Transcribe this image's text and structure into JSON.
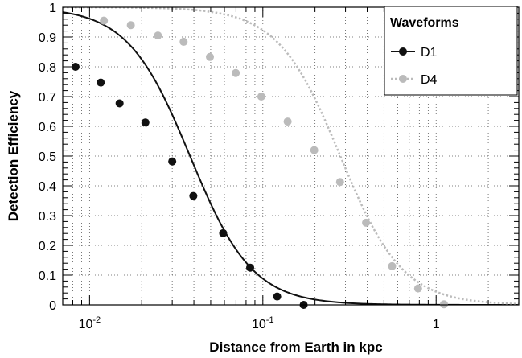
{
  "chart_data": {
    "type": "scatter",
    "xlabel": "Distance from Earth in kpc",
    "ylabel": "Detection Efficiency",
    "xscale": "log",
    "xlim": [
      0.007,
      3.0
    ],
    "ylim": [
      0,
      1
    ],
    "grid": true,
    "legend": {
      "title": "Waveforms",
      "position": "top-right"
    },
    "x_tick_labels": [
      {
        "base": "10",
        "exp": "-2",
        "value": 0.01
      },
      {
        "base": "10",
        "exp": "-1",
        "value": 0.1
      },
      {
        "base": "1",
        "exp": "",
        "value": 1
      }
    ],
    "y_tick_labels": [
      "0",
      "0.1",
      "0.2",
      "0.3",
      "0.4",
      "0.5",
      "0.6",
      "0.7",
      "0.8",
      "0.9",
      "1"
    ],
    "series": [
      {
        "name": "D1",
        "color": "#111111",
        "line_style": "solid",
        "x": [
          0.0083,
          0.0116,
          0.0149,
          0.021,
          0.03,
          0.0397,
          0.059,
          0.0845,
          0.121,
          0.172
        ],
        "y": [
          0.8,
          0.747,
          0.677,
          0.613,
          0.482,
          0.366,
          0.241,
          0.125,
          0.028,
          0.0
        ],
        "fit": {
          "midpoint": 0.038,
          "width": 0.18
        }
      },
      {
        "name": "D4",
        "color": "#bbbbbb",
        "line_style": "dotted",
        "x": [
          0.0121,
          0.0173,
          0.0248,
          0.0349,
          0.0495,
          0.0698,
          0.098,
          0.139,
          0.198,
          0.279,
          0.394,
          0.557,
          0.787,
          1.11
        ],
        "y": [
          0.955,
          0.94,
          0.905,
          0.884,
          0.833,
          0.779,
          0.7,
          0.616,
          0.52,
          0.413,
          0.276,
          0.13,
          0.055,
          0.002
        ],
        "fit": {
          "midpoint": 0.28,
          "width": 0.18
        }
      }
    ]
  }
}
